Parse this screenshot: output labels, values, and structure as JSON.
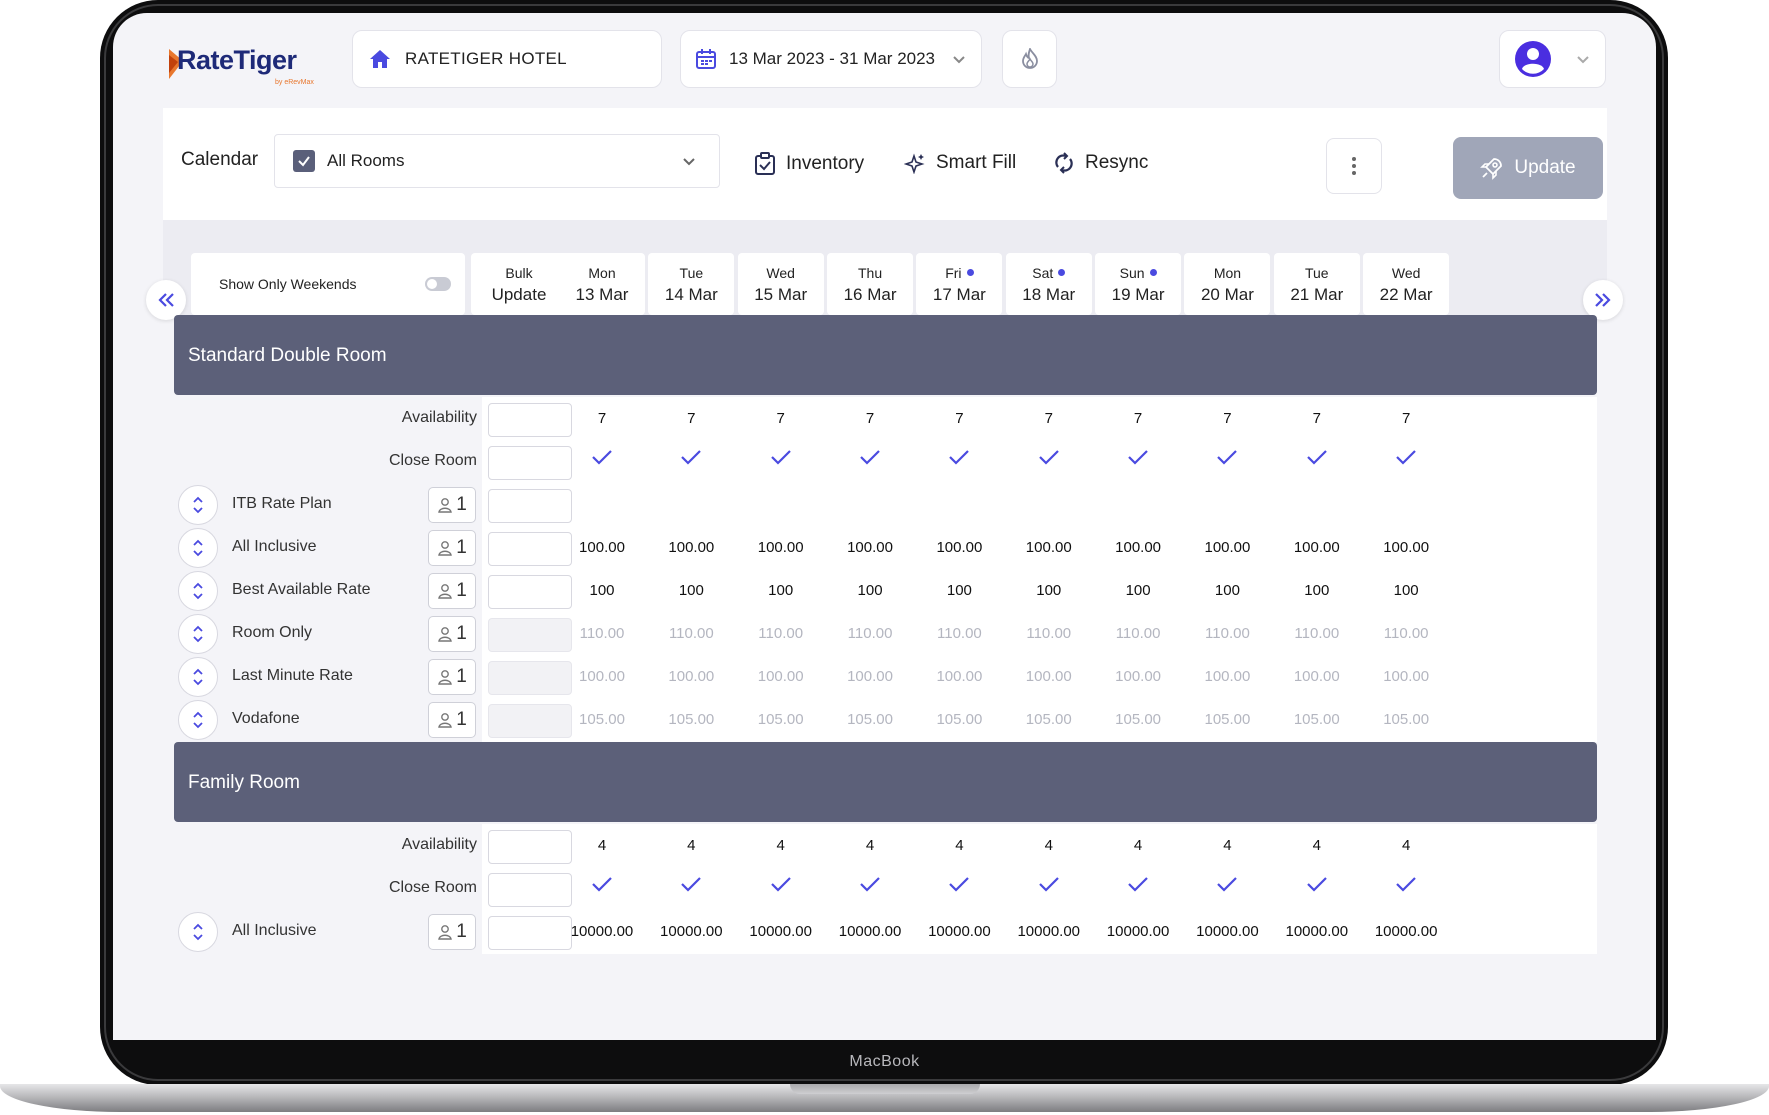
{
  "device": {
    "label": "MacBook"
  },
  "header": {
    "logo_text": "RateTiger",
    "logo_sub": "by eRevMax",
    "hotel": "RATETIGER HOTEL",
    "date_range": "13 Mar 2023 - 31 Mar 2023"
  },
  "toolbar": {
    "calendar_label": "Calendar",
    "room_filter": "All Rooms",
    "inventory_label": "Inventory",
    "smart_fill_label": "Smart Fill",
    "resync_label": "Resync",
    "update_label": "Update"
  },
  "date_header": {
    "weekends_toggle_label": "Show Only Weekends",
    "bulk_label_1": "Bulk",
    "bulk_label_2": "Update",
    "days": [
      {
        "name": "Mon",
        "date": "13 Mar",
        "weekend": false
      },
      {
        "name": "Tue",
        "date": "14 Mar",
        "weekend": false
      },
      {
        "name": "Wed",
        "date": "15 Mar",
        "weekend": false
      },
      {
        "name": "Thu",
        "date": "16 Mar",
        "weekend": false
      },
      {
        "name": "Fri",
        "date": "17 Mar",
        "weekend": true
      },
      {
        "name": "Sat",
        "date": "18 Mar",
        "weekend": true
      },
      {
        "name": "Sun",
        "date": "19 Mar",
        "weekend": true
      },
      {
        "name": "Mon",
        "date": "20 Mar",
        "weekend": false
      },
      {
        "name": "Tue",
        "date": "21 Mar",
        "weekend": false
      },
      {
        "name": "Wed",
        "date": "22 Mar",
        "weekend": false
      }
    ]
  },
  "labels": {
    "availability": "Availability",
    "close_room": "Close Room"
  },
  "rooms": [
    {
      "name": "Standard Double Room",
      "availability": [
        "7",
        "7",
        "7",
        "7",
        "7",
        "7",
        "7",
        "7",
        "7",
        "7"
      ],
      "rate_plans": [
        {
          "name": "ITB Rate Plan",
          "occupancy": "1",
          "disabled": false,
          "values": [
            "",
            "",
            "",
            "",
            "",
            "",
            "",
            "",
            "",
            ""
          ]
        },
        {
          "name": "All Inclusive",
          "occupancy": "1",
          "disabled": false,
          "values": [
            "100.00",
            "100.00",
            "100.00",
            "100.00",
            "100.00",
            "100.00",
            "100.00",
            "100.00",
            "100.00",
            "100.00"
          ]
        },
        {
          "name": "Best Available Rate",
          "occupancy": "1",
          "disabled": false,
          "values": [
            "100",
            "100",
            "100",
            "100",
            "100",
            "100",
            "100",
            "100",
            "100",
            "100"
          ]
        },
        {
          "name": "Room Only",
          "occupancy": "1",
          "disabled": true,
          "values": [
            "110.00",
            "110.00",
            "110.00",
            "110.00",
            "110.00",
            "110.00",
            "110.00",
            "110.00",
            "110.00",
            "110.00"
          ]
        },
        {
          "name": "Last Minute Rate",
          "occupancy": "1",
          "disabled": true,
          "values": [
            "100.00",
            "100.00",
            "100.00",
            "100.00",
            "100.00",
            "100.00",
            "100.00",
            "100.00",
            "100.00",
            "100.00"
          ]
        },
        {
          "name": "Vodafone",
          "occupancy": "1",
          "disabled": true,
          "values": [
            "105.00",
            "105.00",
            "105.00",
            "105.00",
            "105.00",
            "105.00",
            "105.00",
            "105.00",
            "105.00",
            "105.00"
          ]
        }
      ]
    },
    {
      "name": "Family Room",
      "availability": [
        "4",
        "4",
        "4",
        "4",
        "4",
        "4",
        "4",
        "4",
        "4",
        "4"
      ],
      "rate_plans": [
        {
          "name": "All Inclusive",
          "occupancy": "1",
          "disabled": false,
          "values": [
            "10000.00",
            "10000.00",
            "10000.00",
            "10000.00",
            "10000.00",
            "10000.00",
            "10000.00",
            "10000.00",
            "10000.00",
            "10000.00"
          ]
        }
      ]
    }
  ],
  "colors": {
    "accent": "#4a4ae0",
    "room_header": "#5c6079",
    "update_button": "#a0a6b8"
  }
}
